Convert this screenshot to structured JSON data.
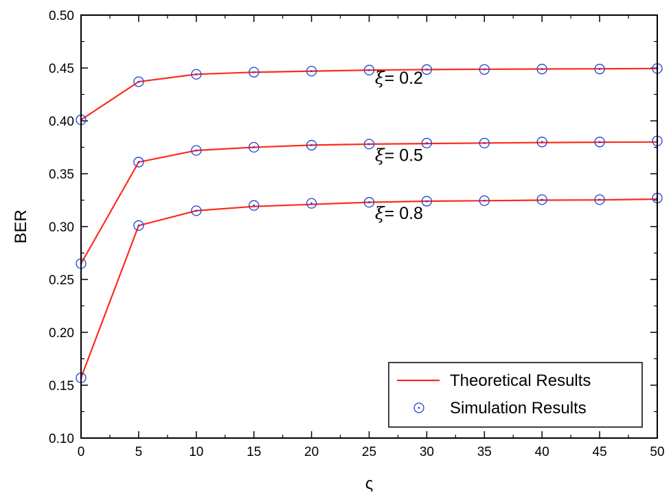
{
  "chart_data": {
    "type": "line",
    "title": "",
    "xlabel": "ς",
    "ylabel": "BER",
    "xlim": [
      0,
      50
    ],
    "ylim": [
      0.1,
      0.5
    ],
    "x_ticks": [
      0,
      5,
      10,
      15,
      20,
      25,
      30,
      35,
      40,
      45,
      50
    ],
    "x_tick_labels": [
      "0",
      "5",
      "10",
      "15",
      "20",
      "25",
      "30",
      "35",
      "40",
      "45",
      "50"
    ],
    "y_ticks": [
      0.1,
      0.15,
      0.2,
      0.25,
      0.3,
      0.35,
      0.4,
      0.45,
      0.5
    ],
    "y_tick_labels": [
      "0.10",
      "0.15",
      "0.20",
      "0.25",
      "0.30",
      "0.35",
      "0.40",
      "0.45",
      "0.50"
    ],
    "grid": false,
    "legend": {
      "position": "bottom-right",
      "entries": [
        {
          "label": "Theoretical Results",
          "marker": "line",
          "color": "#ff2a1a"
        },
        {
          "label": "Simulation Results",
          "marker": "circle",
          "color": "#1f3fd1"
        }
      ]
    },
    "x": [
      0,
      5,
      10,
      15,
      20,
      25,
      30,
      35,
      40,
      45,
      50
    ],
    "series": [
      {
        "annotation": {
          "symbol": "ξ",
          "text": "= 0.2",
          "x": 25.5,
          "y": 0.435
        },
        "theoretical": [
          0.401,
          0.437,
          0.444,
          0.446,
          0.447,
          0.448,
          0.4485,
          0.4488,
          0.449,
          0.4492,
          0.4495
        ],
        "simulation": [
          0.401,
          0.437,
          0.444,
          0.446,
          0.447,
          0.448,
          0.4485,
          0.4486,
          0.449,
          0.449,
          0.4495
        ]
      },
      {
        "annotation": {
          "symbol": "ξ",
          "text": "= 0.5",
          "x": 25.5,
          "y": 0.362
        },
        "theoretical": [
          0.265,
          0.361,
          0.372,
          0.375,
          0.377,
          0.378,
          0.3785,
          0.379,
          0.3795,
          0.3798,
          0.38
        ],
        "simulation": [
          0.265,
          0.361,
          0.372,
          0.375,
          0.377,
          0.378,
          0.379,
          0.379,
          0.38,
          0.38,
          0.381
        ]
      },
      {
        "annotation": {
          "symbol": "ξ",
          "text": "= 0.8",
          "x": 25.5,
          "y": 0.307
        },
        "theoretical": [
          0.157,
          0.301,
          0.315,
          0.319,
          0.321,
          0.323,
          0.324,
          0.3245,
          0.325,
          0.3252,
          0.326
        ],
        "simulation": [
          0.157,
          0.301,
          0.315,
          0.32,
          0.322,
          0.323,
          0.324,
          0.3245,
          0.3255,
          0.3255,
          0.327
        ]
      }
    ],
    "colors": {
      "line": "#ff2a1a",
      "marker": "#1f3fd1",
      "axis": "#000000"
    }
  }
}
